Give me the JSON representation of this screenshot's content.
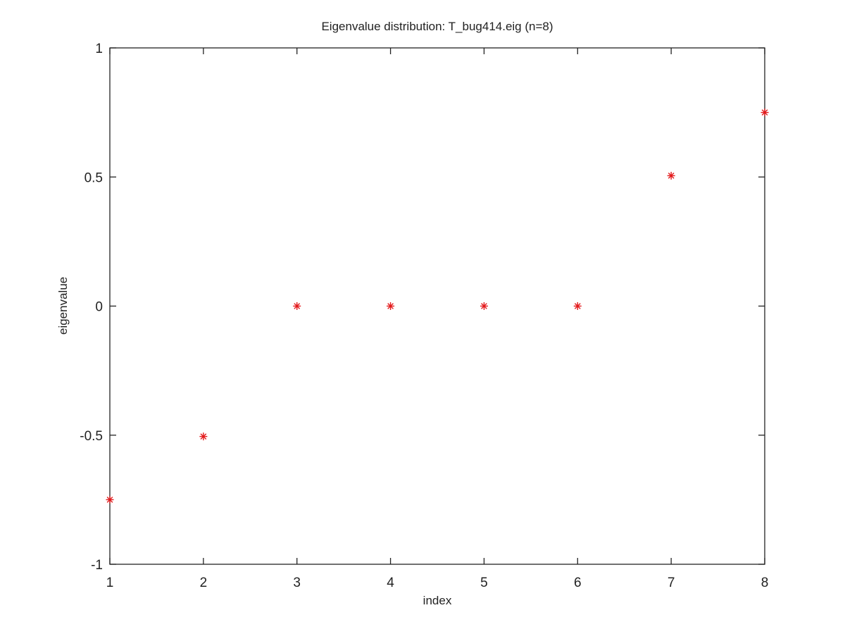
{
  "chart_data": {
    "type": "scatter",
    "title": "Eigenvalue distribution: T_bug414.eig (n=8)",
    "xlabel": "index",
    "ylabel": "eigenvalue",
    "xlim": [
      1,
      8
    ],
    "ylim": [
      -1,
      1
    ],
    "x_ticks": [
      1,
      2,
      3,
      4,
      5,
      6,
      7,
      8
    ],
    "x_tick_labels": [
      "1",
      "2",
      "3",
      "4",
      "5",
      "6",
      "7",
      "8"
    ],
    "y_ticks": [
      -1,
      -0.5,
      0,
      0.5,
      1
    ],
    "y_tick_labels": [
      "-1",
      "-0.5",
      "0",
      "0.5",
      "1"
    ],
    "grid": false,
    "legend": "none",
    "marker": "asterisk",
    "marker_color": "#e31a1c",
    "series": [
      {
        "x": [
          1,
          2,
          3,
          4,
          5,
          6,
          7,
          8
        ],
        "y": [
          -0.75,
          -0.505,
          0,
          0,
          0,
          0,
          0.505,
          0.75
        ]
      }
    ]
  }
}
